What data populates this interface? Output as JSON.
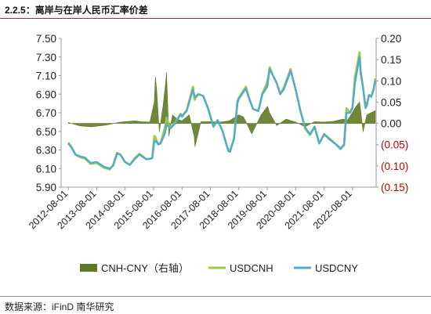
{
  "title": "2.2.5：离岸与在岸人民币汇率价差",
  "source": "数据来源：iFinD  南华研究",
  "colors": {
    "spread": "#5e7a24",
    "usdcnh": "#9ec84a",
    "usdcny": "#4faec6",
    "negative_label": "#c00000"
  },
  "chart_data": {
    "type": "line",
    "title": "",
    "xlabel": "",
    "ylabel": "",
    "x_ticks": [
      "2012-08-01",
      "2013-08-01",
      "2014-08-01",
      "2015-08-01",
      "2016-08-01",
      "2017-08-01",
      "2018-08-01",
      "2019-08-01",
      "2020-08-01",
      "2021-08-01",
      "2022-08-01"
    ],
    "y_left_ticks": [
      "7.50",
      "7.30",
      "7.10",
      "6.90",
      "6.70",
      "6.50",
      "6.30",
      "6.10",
      "5.90"
    ],
    "y_right_ticks": [
      "0.20",
      "0.15",
      "0.10",
      "0.05",
      "0.00",
      "(0.05)",
      "(0.10)",
      "(0.15)"
    ],
    "ylim_left": [
      5.9,
      7.5
    ],
    "ylim_right": [
      -0.15,
      0.2
    ],
    "legend": [
      "CNH-CNY（右轴）",
      "USDCNH",
      "USDCNY"
    ],
    "legend_position": "bottom",
    "series": [
      {
        "name": "USDCNY",
        "axis": "left",
        "x": [
          "2012-08-01",
          "2012-09-15",
          "2012-11-01",
          "2013-01-01",
          "2013-03-01",
          "2013-05-15",
          "2013-08-01",
          "2013-11-01",
          "2014-01-15",
          "2014-03-01",
          "2014-04-20",
          "2014-06-01",
          "2014-08-01",
          "2014-10-01",
          "2014-12-01",
          "2015-02-01",
          "2015-05-01",
          "2015-07-15",
          "2015-08-11",
          "2015-08-25",
          "2015-10-01",
          "2015-11-01",
          "2015-12-31",
          "2016-01-15",
          "2016-03-01",
          "2016-05-01",
          "2016-07-15",
          "2016-08-01",
          "2016-10-01",
          "2016-12-20",
          "2017-01-10",
          "2017-03-01",
          "2017-05-01",
          "2017-07-01",
          "2017-08-01",
          "2017-09-10",
          "2017-11-01",
          "2018-01-01",
          "2018-03-20",
          "2018-04-10",
          "2018-06-01",
          "2018-07-15",
          "2018-08-01",
          "2018-10-31",
          "2018-12-01",
          "2019-02-01",
          "2019-04-10",
          "2019-06-01",
          "2019-08-01",
          "2019-09-03",
          "2019-10-15",
          "2019-12-01",
          "2020-01-15",
          "2020-03-01",
          "2020-05-27",
          "2020-07-01",
          "2020-08-01",
          "2020-10-01",
          "2020-12-01",
          "2021-02-01",
          "2021-04-01",
          "2021-05-31",
          "2021-08-01",
          "2021-10-01",
          "2022-01-01",
          "2022-03-01",
          "2022-04-15",
          "2022-05-15",
          "2022-07-01",
          "2022-08-01",
          "2022-09-01",
          "2022-10-31",
          "2022-11-15",
          "2022-12-15",
          "2023-01-15",
          "2023-02-01",
          "2023-03-01",
          "2023-04-01",
          "2023-05-01",
          "2023-05-20"
        ],
        "y": [
          6.37,
          6.32,
          6.25,
          6.23,
          6.22,
          6.16,
          6.17,
          6.12,
          6.1,
          6.13,
          6.26,
          6.25,
          6.17,
          6.14,
          6.2,
          6.25,
          6.2,
          6.21,
          6.39,
          6.4,
          6.36,
          6.37,
          6.49,
          6.58,
          6.53,
          6.58,
          6.68,
          6.66,
          6.72,
          6.95,
          6.87,
          6.9,
          6.88,
          6.75,
          6.66,
          6.55,
          6.62,
          6.51,
          6.29,
          6.28,
          6.42,
          6.8,
          6.85,
          6.96,
          6.88,
          6.74,
          6.72,
          6.9,
          6.98,
          7.17,
          7.1,
          7.02,
          6.9,
          6.95,
          7.15,
          7.05,
          6.95,
          6.72,
          6.54,
          6.47,
          6.55,
          6.37,
          6.47,
          6.42,
          6.36,
          6.31,
          6.35,
          6.7,
          6.7,
          6.75,
          7.02,
          7.3,
          7.12,
          6.97,
          6.75,
          6.78,
          6.89,
          6.87,
          6.95,
          7.04
        ]
      },
      {
        "name": "USDCNH",
        "axis": "left",
        "x": [
          "2012-08-01",
          "2012-09-15",
          "2012-11-01",
          "2013-01-01",
          "2013-03-01",
          "2013-05-15",
          "2013-08-01",
          "2013-11-01",
          "2014-01-15",
          "2014-03-01",
          "2014-04-20",
          "2014-06-01",
          "2014-08-01",
          "2014-10-01",
          "2014-12-01",
          "2015-02-01",
          "2015-05-01",
          "2015-07-15",
          "2015-08-11",
          "2015-08-25",
          "2015-10-01",
          "2015-11-01",
          "2015-12-31",
          "2016-01-15",
          "2016-03-01",
          "2016-05-01",
          "2016-07-15",
          "2016-08-01",
          "2016-10-01",
          "2016-12-20",
          "2017-01-10",
          "2017-03-01",
          "2017-05-01",
          "2017-07-01",
          "2017-08-01",
          "2017-09-10",
          "2017-11-01",
          "2018-01-01",
          "2018-03-20",
          "2018-04-10",
          "2018-06-01",
          "2018-07-15",
          "2018-08-01",
          "2018-10-31",
          "2018-12-01",
          "2019-02-01",
          "2019-04-10",
          "2019-06-01",
          "2019-08-01",
          "2019-09-03",
          "2019-10-15",
          "2019-12-01",
          "2020-01-15",
          "2020-03-01",
          "2020-05-27",
          "2020-07-01",
          "2020-08-01",
          "2020-10-01",
          "2020-12-01",
          "2021-02-01",
          "2021-04-01",
          "2021-05-31",
          "2021-08-01",
          "2021-10-01",
          "2022-01-01",
          "2022-03-01",
          "2022-04-15",
          "2022-05-15",
          "2022-07-01",
          "2022-08-01",
          "2022-09-01",
          "2022-10-31",
          "2022-11-15",
          "2022-12-15",
          "2023-01-15",
          "2023-02-01",
          "2023-03-01",
          "2023-04-01",
          "2023-05-01",
          "2023-05-20"
        ],
        "y": [
          6.38,
          6.33,
          6.25,
          6.22,
          6.21,
          6.15,
          6.16,
          6.11,
          6.09,
          6.14,
          6.27,
          6.25,
          6.17,
          6.14,
          6.21,
          6.26,
          6.2,
          6.21,
          6.45,
          6.44,
          6.36,
          6.38,
          6.56,
          6.65,
          6.54,
          6.59,
          6.69,
          6.66,
          6.73,
          6.98,
          6.84,
          6.9,
          6.88,
          6.75,
          6.66,
          6.55,
          6.62,
          6.51,
          6.29,
          6.29,
          6.43,
          6.83,
          6.86,
          6.98,
          6.88,
          6.74,
          6.72,
          6.91,
          7.03,
          7.19,
          7.1,
          7.02,
          6.9,
          6.97,
          7.17,
          7.05,
          6.95,
          6.72,
          6.53,
          6.46,
          6.55,
          6.37,
          6.47,
          6.43,
          6.36,
          6.32,
          6.36,
          6.75,
          6.7,
          6.76,
          7.08,
          7.35,
          7.15,
          6.97,
          6.76,
          6.8,
          6.89,
          6.88,
          6.96,
          7.07
        ]
      },
      {
        "name": "CNH-CNY（右轴）",
        "axis": "right",
        "type": "area",
        "x": [
          "2012-08-01",
          "2013-01-01",
          "2013-06-01",
          "2013-12-01",
          "2014-06-01",
          "2014-12-01",
          "2015-03-01",
          "2015-06-15",
          "2015-08-11",
          "2015-08-25",
          "2015-09-10",
          "2015-10-15",
          "2015-12-01",
          "2016-01-06",
          "2016-01-15",
          "2016-02-15",
          "2016-04-01",
          "2016-06-01",
          "2016-08-01",
          "2016-11-01",
          "2017-01-05",
          "2017-01-15",
          "2017-04-01",
          "2017-08-01",
          "2017-12-01",
          "2018-04-01",
          "2018-08-01",
          "2018-10-01",
          "2019-01-15",
          "2019-05-15",
          "2019-08-05",
          "2019-09-01",
          "2019-12-01",
          "2020-04-01",
          "2020-08-01",
          "2020-12-01",
          "2021-04-01",
          "2021-08-01",
          "2021-12-01",
          "2022-04-01",
          "2022-06-01",
          "2022-09-15",
          "2022-10-31",
          "2022-11-15",
          "2022-12-15",
          "2023-02-01",
          "2023-05-20"
        ],
        "y": [
          0.002,
          -0.006,
          -0.008,
          -0.004,
          0.003,
          0.006,
          0.004,
          0.003,
          0.05,
          0.11,
          0.08,
          -0.02,
          0.04,
          0.1,
          0.12,
          -0.03,
          0.02,
          0.01,
          0.006,
          0.02,
          -0.03,
          -0.055,
          0.004,
          0.004,
          0.003,
          0.006,
          0.02,
          0.015,
          -0.025,
          0.02,
          0.04,
          0.025,
          -0.005,
          0.01,
          0.003,
          -0.008,
          0.004,
          0.003,
          0.005,
          0.01,
          0.008,
          0.04,
          0.05,
          0.03,
          -0.02,
          0.02,
          0.03
        ]
      }
    ]
  }
}
